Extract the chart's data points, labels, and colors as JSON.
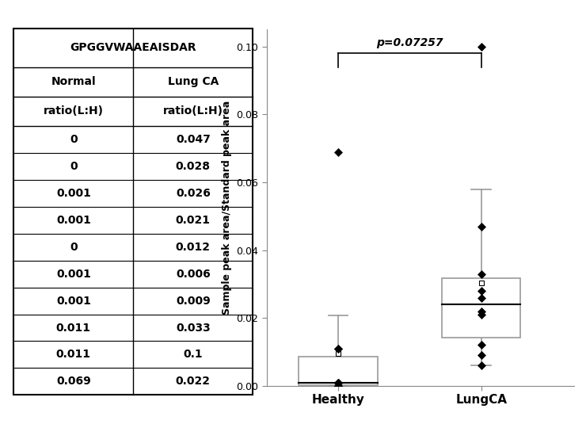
{
  "title": "GPGGVWAAEAISDAR",
  "ylabel": "Sample peak area/Standard peak area",
  "p_value": "p=0.07257",
  "healthy_data": [
    0,
    0,
    0.001,
    0.001,
    0,
    0.001,
    0.001,
    0.011,
    0.011,
    0.069
  ],
  "lungca_data": [
    0.047,
    0.028,
    0.026,
    0.021,
    0.012,
    0.006,
    0.009,
    0.033,
    0.1,
    0.022
  ],
  "ylim": [
    0,
    0.105
  ],
  "yticks": [
    0.0,
    0.02,
    0.04,
    0.06,
    0.08,
    0.1
  ],
  "group_labels": [
    "Healthy",
    "LungCA"
  ],
  "box_color": "#999999",
  "whisker_color": "#999999",
  "median_color": "#000000",
  "table_normal_label": "Normal",
  "table_lungca_label": "Lung CA",
  "table_ratio_label": "ratio(L:H)",
  "normal_vals": [
    0,
    0,
    0.001,
    0.001,
    0,
    0.001,
    0.001,
    0.011,
    0.011,
    0.069
  ],
  "lungca_vals": [
    0.047,
    0.028,
    0.026,
    0.021,
    0.012,
    0.006,
    0.009,
    0.033,
    0.1,
    0.022
  ],
  "bg_color": "#ffffff"
}
